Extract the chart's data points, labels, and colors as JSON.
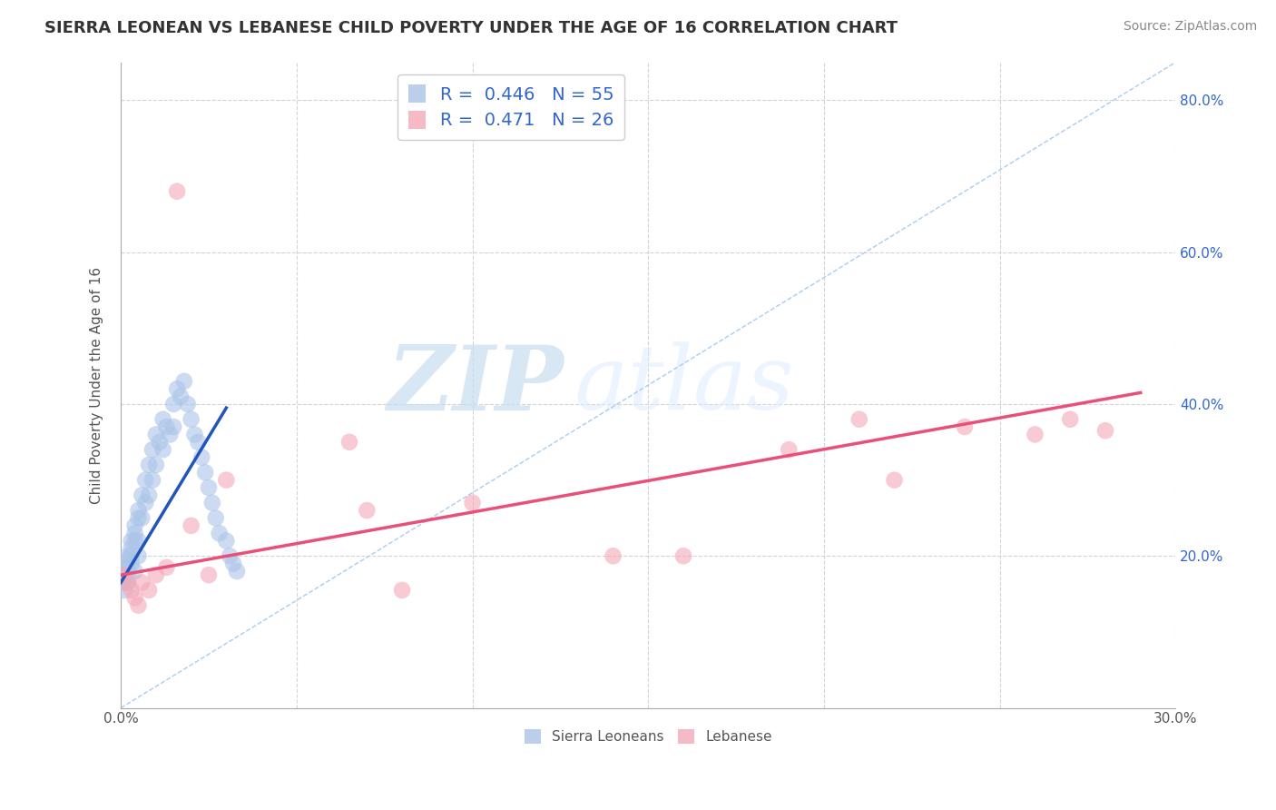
{
  "title": "SIERRA LEONEAN VS LEBANESE CHILD POVERTY UNDER THE AGE OF 16 CORRELATION CHART",
  "source": "Source: ZipAtlas.com",
  "ylabel": "Child Poverty Under the Age of 16",
  "xlim": [
    0.0,
    0.3
  ],
  "ylim": [
    0.0,
    0.85
  ],
  "xticks": [
    0.0,
    0.05,
    0.1,
    0.15,
    0.2,
    0.25,
    0.3
  ],
  "yticks": [
    0.0,
    0.2,
    0.4,
    0.6,
    0.8
  ],
  "ytick_labels_right": [
    "",
    "20.0%",
    "40.0%",
    "60.0%",
    "80.0%"
  ],
  "xtick_labels": [
    "0.0%",
    "",
    "",
    "",
    "",
    "",
    "30.0%"
  ],
  "background_color": "#ffffff",
  "grid_color": "#d0d0d0",
  "sierra_color": "#aac4e8",
  "lebanese_color": "#f4a8b8",
  "sierra_R": 0.446,
  "sierra_N": 55,
  "lebanese_R": 0.471,
  "lebanese_N": 26,
  "sierra_line_color": "#2255bb",
  "lebanese_line_color": "#e8507a",
  "diagonal_color": "#aaccee",
  "label_color": "#3366cc",
  "watermark_zip": "ZIP",
  "watermark_atlas": "atlas",
  "sierra_points_x": [
    0.001,
    0.001,
    0.001,
    0.001,
    0.002,
    0.002,
    0.002,
    0.002,
    0.002,
    0.003,
    0.003,
    0.003,
    0.003,
    0.004,
    0.004,
    0.004,
    0.004,
    0.005,
    0.005,
    0.005,
    0.005,
    0.006,
    0.006,
    0.007,
    0.007,
    0.008,
    0.008,
    0.009,
    0.009,
    0.01,
    0.01,
    0.011,
    0.012,
    0.012,
    0.013,
    0.014,
    0.015,
    0.015,
    0.016,
    0.017,
    0.018,
    0.019,
    0.02,
    0.021,
    0.022,
    0.023,
    0.024,
    0.025,
    0.026,
    0.027,
    0.028,
    0.03,
    0.031,
    0.032,
    0.033
  ],
  "sierra_points_y": [
    0.185,
    0.175,
    0.165,
    0.155,
    0.2,
    0.195,
    0.185,
    0.175,
    0.165,
    0.22,
    0.21,
    0.2,
    0.19,
    0.24,
    0.23,
    0.22,
    0.18,
    0.26,
    0.25,
    0.22,
    0.2,
    0.28,
    0.25,
    0.3,
    0.27,
    0.32,
    0.28,
    0.34,
    0.3,
    0.36,
    0.32,
    0.35,
    0.38,
    0.34,
    0.37,
    0.36,
    0.4,
    0.37,
    0.42,
    0.41,
    0.43,
    0.4,
    0.38,
    0.36,
    0.35,
    0.33,
    0.31,
    0.29,
    0.27,
    0.25,
    0.23,
    0.22,
    0.2,
    0.19,
    0.18
  ],
  "lebanese_points_x": [
    0.001,
    0.002,
    0.003,
    0.004,
    0.005,
    0.006,
    0.008,
    0.01,
    0.013,
    0.016,
    0.02,
    0.025,
    0.03,
    0.065,
    0.08,
    0.1,
    0.16,
    0.21,
    0.24,
    0.26,
    0.27,
    0.28,
    0.14,
    0.19,
    0.22,
    0.07
  ],
  "lebanese_points_y": [
    0.175,
    0.165,
    0.155,
    0.145,
    0.135,
    0.165,
    0.155,
    0.175,
    0.185,
    0.68,
    0.24,
    0.175,
    0.3,
    0.35,
    0.155,
    0.27,
    0.2,
    0.38,
    0.37,
    0.36,
    0.38,
    0.365,
    0.2,
    0.34,
    0.3,
    0.26
  ],
  "sierra_trend_x": [
    0.0,
    0.03
  ],
  "sierra_trend_y": [
    0.165,
    0.395
  ],
  "lebanese_trend_x": [
    0.0,
    0.29
  ],
  "lebanese_trend_y": [
    0.175,
    0.415
  ]
}
